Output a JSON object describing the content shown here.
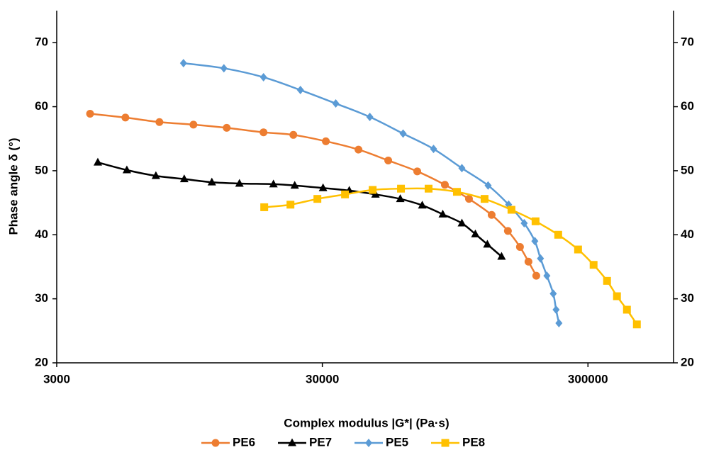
{
  "chart_data": {
    "type": "line",
    "x_label": "Complex modulus |G*| (Pa·s)",
    "y_label": "Phase angle δ (°)",
    "xscale": "log",
    "xlim": [
      3000,
      630000
    ],
    "xticks": [
      3000,
      30000,
      300000
    ],
    "ylim": [
      20,
      75
    ],
    "yticks": [
      20,
      30,
      40,
      50,
      60,
      70
    ],
    "y2lim": [
      20,
      75
    ],
    "y2ticks": [
      20,
      30,
      40,
      50,
      60,
      70
    ],
    "grid": false,
    "legend": "bottom",
    "series": [
      {
        "name": "PE6",
        "color": "#ed7d31",
        "marker": "circle",
        "x": [
          4006,
          5441,
          7307,
          9813,
          13094,
          18016,
          23331,
          30928,
          41033,
          53105,
          68310,
          86790,
          106955,
          130168,
          149879,
          166377,
          179103,
          191640
        ],
        "values": [
          58.9,
          58.3,
          57.6,
          57.2,
          56.7,
          56.0,
          55.6,
          54.6,
          53.3,
          51.6,
          49.9,
          47.8,
          45.6,
          43.1,
          40.6,
          38.1,
          35.8,
          33.6
        ]
      },
      {
        "name": "PE7",
        "color": "#000000",
        "marker": "triangle",
        "x": [
          4284,
          5510,
          7087,
          9060,
          11511,
          14624,
          19638,
          23611,
          30185,
          37893,
          47547,
          58952,
          71319,
          85206,
          100572,
          113013,
          125432,
          141844
        ],
        "values": [
          51.3,
          50.1,
          49.2,
          48.7,
          48.2,
          48.0,
          47.9,
          47.7,
          47.3,
          46.9,
          46.3,
          45.6,
          44.6,
          43.2,
          41.8,
          40.1,
          38.5,
          36.6
        ]
      },
      {
        "name": "PE5",
        "color": "#5b9bd5",
        "marker": "diamond",
        "x": [
          9002,
          12778,
          18016,
          24804,
          33697,
          45273,
          60419,
          78668,
          100572,
          126220,
          150800,
          172610,
          189287,
          198799,
          210120,
          222060,
          227573,
          233237
        ],
        "values": [
          66.8,
          66.0,
          64.6,
          62.6,
          60.5,
          58.4,
          55.8,
          53.4,
          50.4,
          47.7,
          44.7,
          41.8,
          39.0,
          36.3,
          33.6,
          30.8,
          28.3,
          26.2
        ]
      },
      {
        "name": "PE8",
        "color": "#ffc000",
        "marker": "square",
        "x": [
          18127,
          22757,
          28741,
          36517,
          46403,
          59315,
          75357,
          96332,
          122419,
          154563,
          190466,
          231800,
          275357,
          315030,
          354000,
          385800,
          420600,
          458400
        ],
        "values": [
          44.3,
          44.7,
          45.6,
          46.3,
          47.0,
          47.2,
          47.2,
          46.7,
          45.6,
          43.9,
          42.1,
          40.0,
          37.7,
          35.3,
          32.8,
          30.4,
          28.3,
          26.0
        ]
      }
    ]
  }
}
